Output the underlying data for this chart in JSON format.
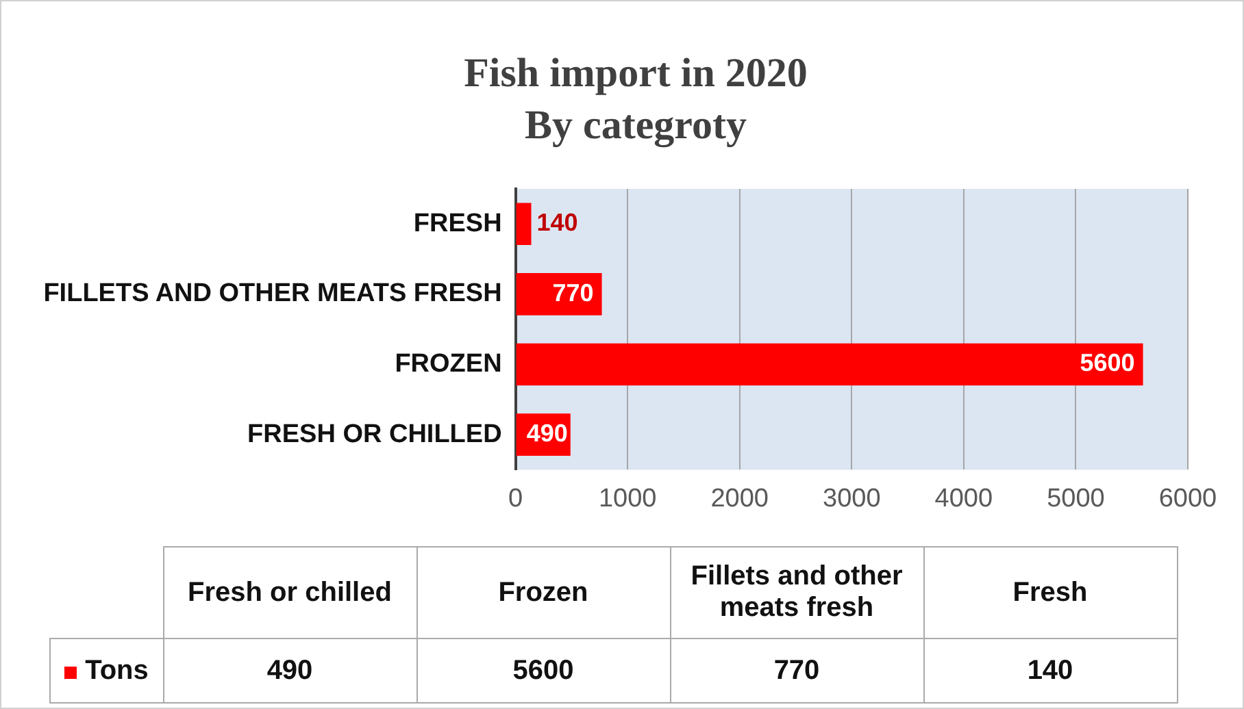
{
  "chart_data": {
    "type": "bar",
    "orientation": "horizontal",
    "title": "Fish import in 2020",
    "subtitle": "By categroty",
    "categories": [
      "FRESH",
      "FILLETS AND OTHER MEATS FRESH",
      "FROZEN",
      "FRESH OR CHILLED"
    ],
    "series": [
      {
        "name": "Tons",
        "color": "#ff0000",
        "values": [
          140,
          770,
          5600,
          490
        ]
      }
    ],
    "xlim": [
      0,
      6000
    ],
    "xticks": [
      0,
      1000,
      2000,
      3000,
      4000,
      5000,
      6000
    ],
    "grid": "x",
    "data_labels": true,
    "legend": "bottom",
    "annotations": [
      "Fresh or chilled",
      "Frozen",
      "Fillets and other meats fresh",
      "Fresh",
      "490",
      "5600",
      "770",
      "140"
    ]
  }
}
